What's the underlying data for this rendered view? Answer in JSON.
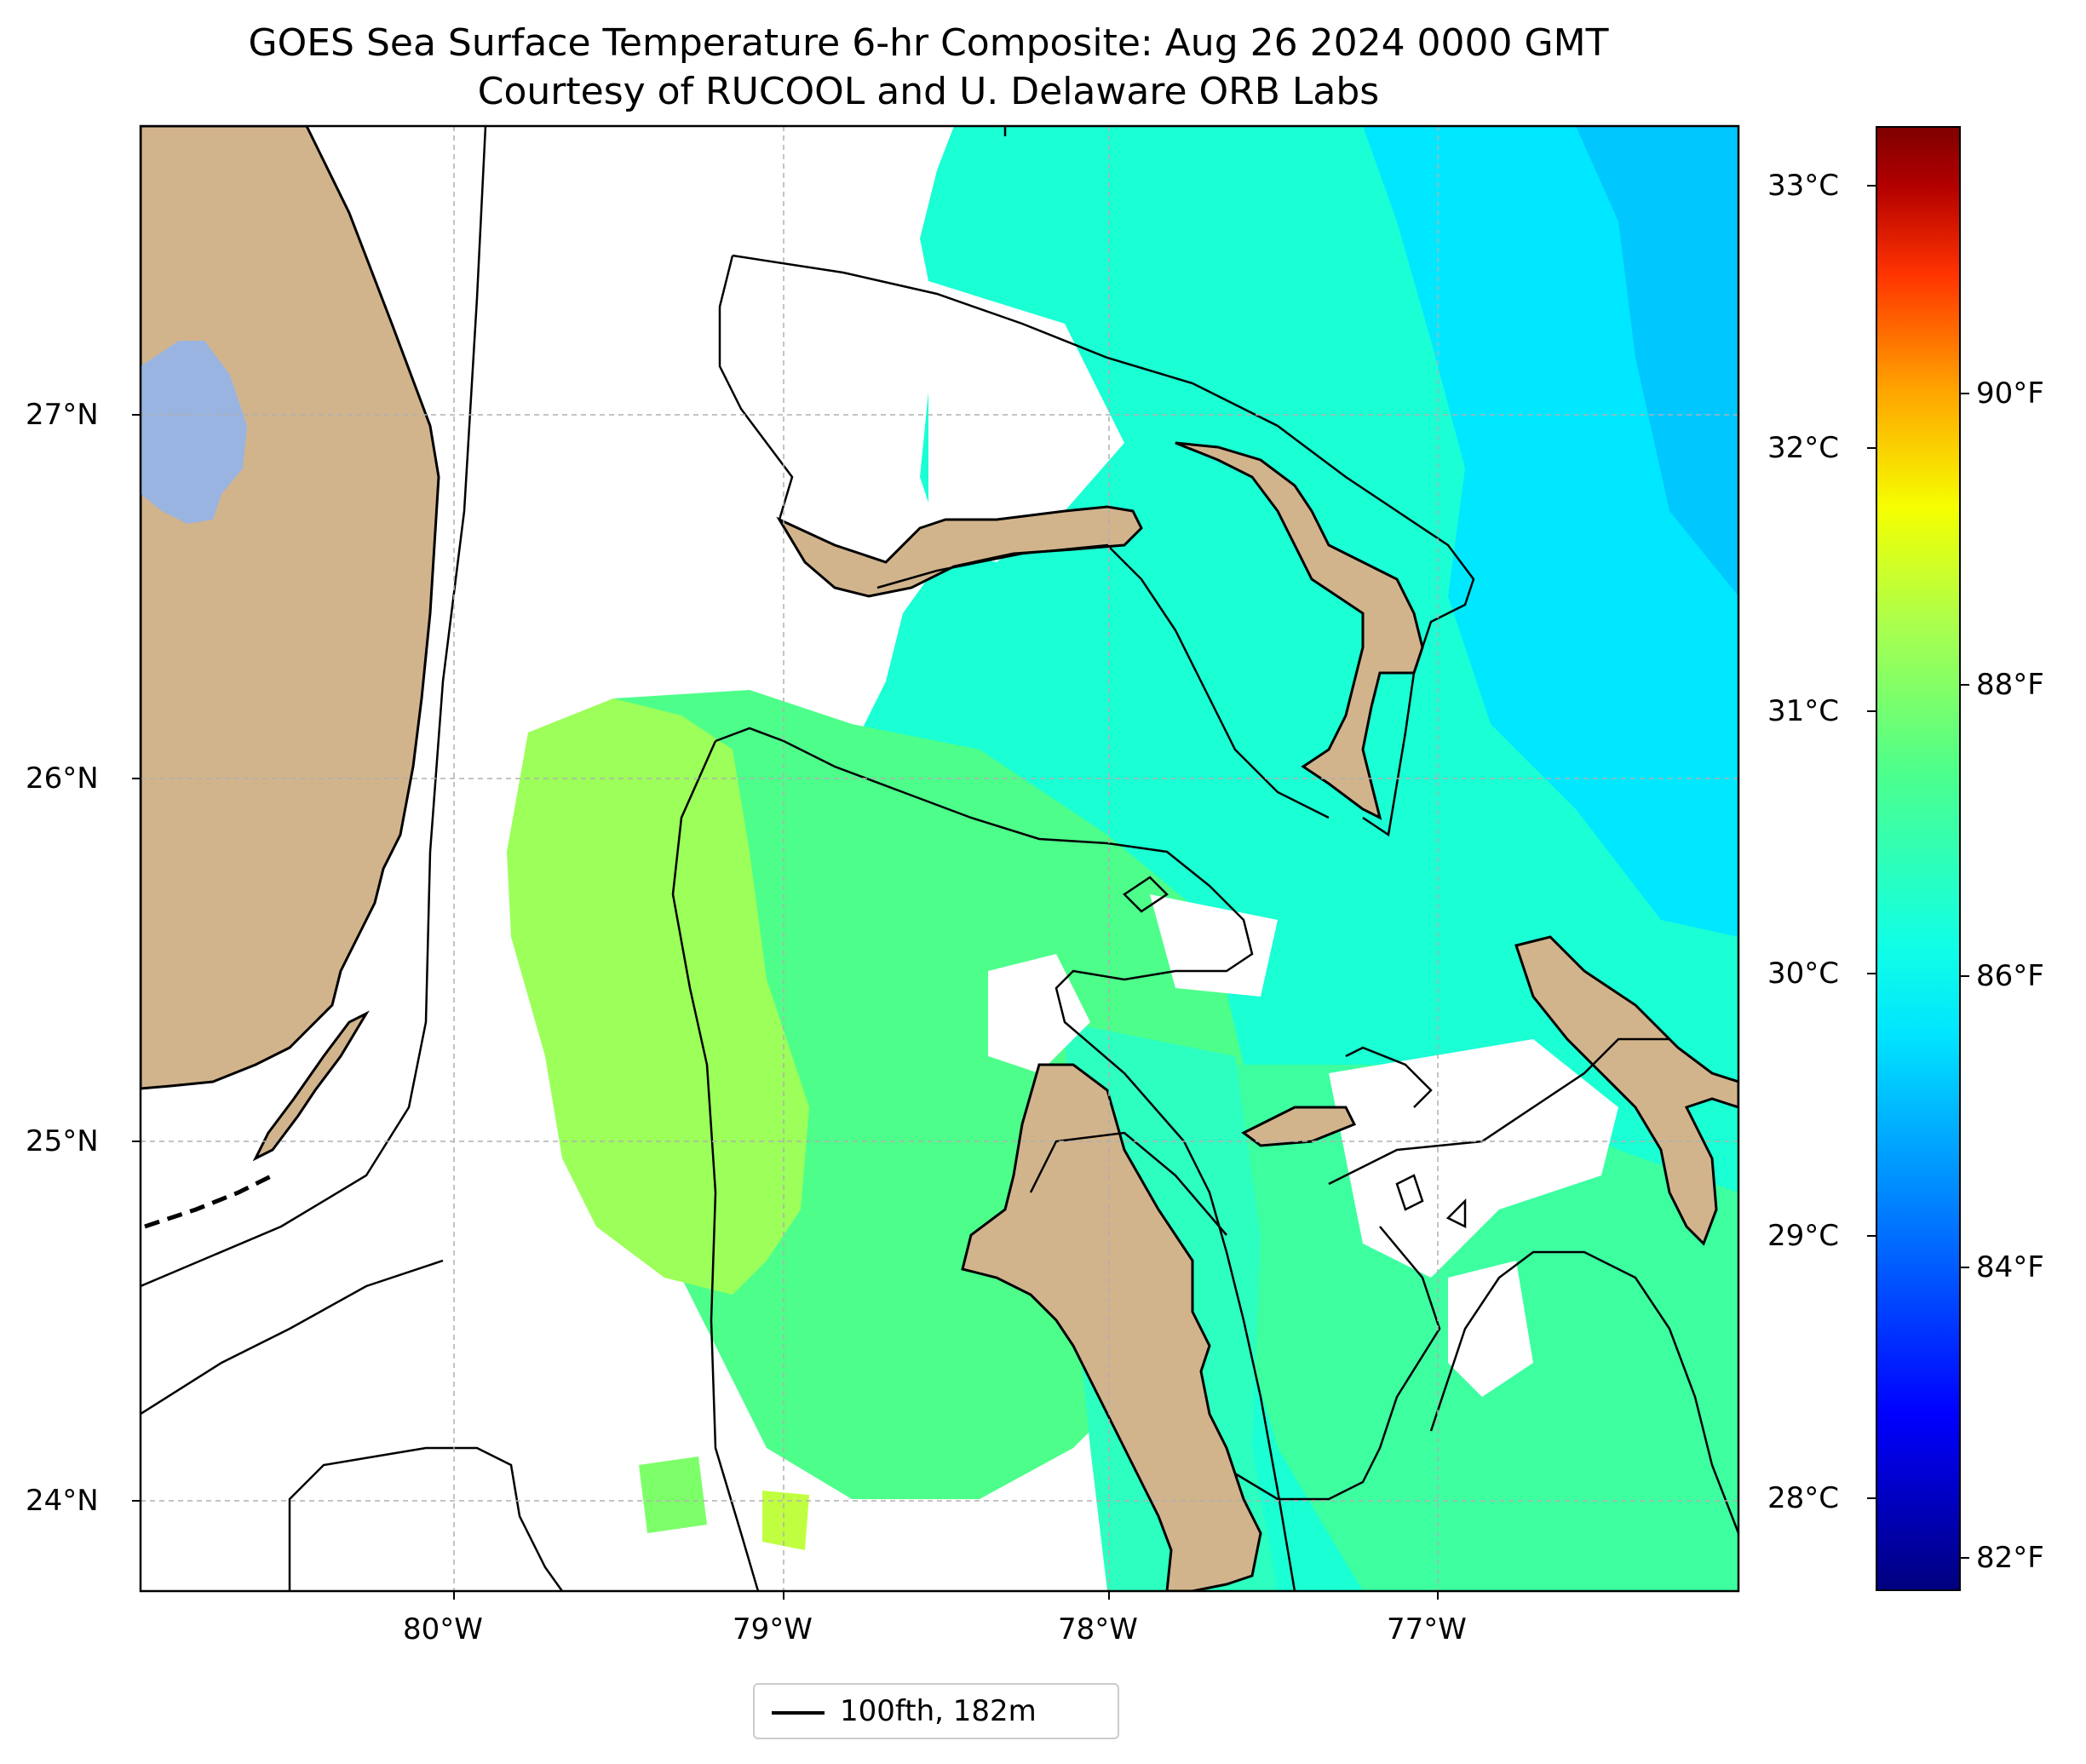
{
  "title": {
    "line1": "GOES Sea Surface Temperature 6-hr Composite: Aug 26 2024 0000 GMT",
    "line2": "Courtesy of RUCOOL and U. Delaware ORB Labs"
  },
  "axes": {
    "lat_labels": [
      "27°N",
      "26°N",
      "25°N",
      "24°N"
    ],
    "lon_labels": [
      "80°W",
      "79°W",
      "78°W",
      "77°W"
    ],
    "lat_values": [
      27,
      26,
      25,
      24
    ],
    "lon_values": [
      -80,
      -79,
      -78,
      -77
    ],
    "extent": {
      "lon_min": -80.96,
      "lon_max": -76.1,
      "lat_min": 23.74,
      "lat_max": 27.78
    }
  },
  "colorbar": {
    "celsius_labels": [
      "33°C",
      "32°C",
      "31°C",
      "30°C",
      "29°C",
      "28°C"
    ],
    "celsius_values": [
      33,
      32,
      31,
      30,
      29,
      28
    ],
    "fahrenheit_labels": [
      "90°F",
      "88°F",
      "86°F",
      "84°F",
      "82°F"
    ],
    "fahrenheit_values": [
      90,
      88,
      86,
      84,
      82
    ],
    "range_celsius": [
      27.65,
      33.23
    ],
    "colormap": "jet"
  },
  "legend": {
    "label": "100fth, 182m",
    "line_color": "#000000"
  },
  "colors": {
    "land": "#d2b48c",
    "lake": "#99b4e0",
    "sst_warm": "#aaff4d",
    "sst_mid": "#4dff8a",
    "sst_cool": "#10ffe6",
    "sst_cold": "#00e5ff",
    "sst_hot": "#ff4500"
  }
}
